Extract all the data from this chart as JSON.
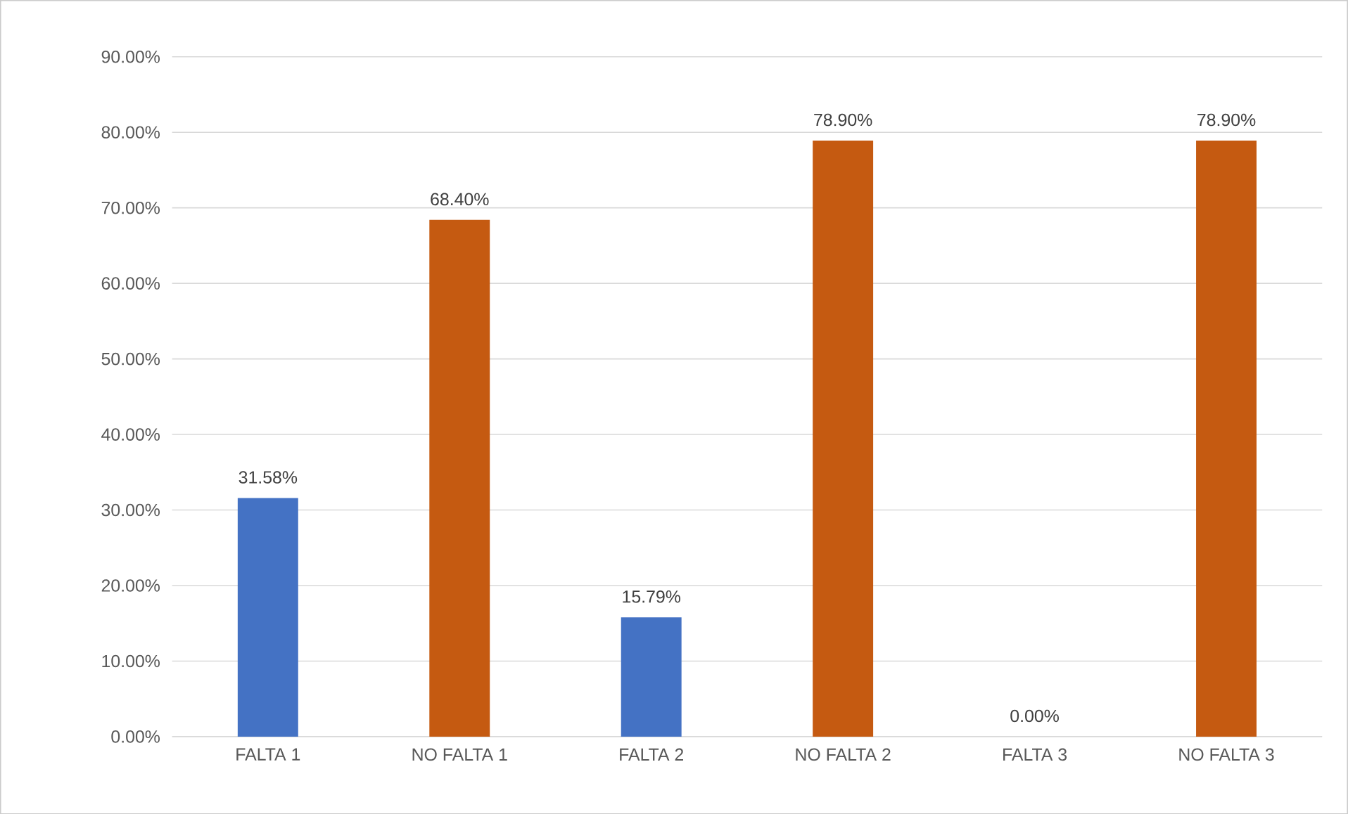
{
  "chart_data": {
    "type": "bar",
    "categories": [
      "FALTA 1",
      "NO FALTA 1",
      "FALTA 2",
      "NO FALTA 2",
      "FALTA 3",
      "NO FALTA 3"
    ],
    "values": [
      31.58,
      68.4,
      15.79,
      78.9,
      0.0,
      78.9
    ],
    "colors": [
      "#4472c4",
      "#c55a11",
      "#4472c4",
      "#c55a11",
      "#4472c4",
      "#c55a11"
    ],
    "value_labels": [
      "31.58%",
      "68.40%",
      "15.79%",
      "78.90%",
      "0.00%",
      "78.90%"
    ],
    "ylim": [
      0,
      90
    ],
    "yticks": [
      {
        "value": 0,
        "label": "0.00%"
      },
      {
        "value": 10,
        "label": "10.00%"
      },
      {
        "value": 20,
        "label": "20.00%"
      },
      {
        "value": 30,
        "label": "30.00%"
      },
      {
        "value": 40,
        "label": "40.00%"
      },
      {
        "value": 50,
        "label": "50.00%"
      },
      {
        "value": 60,
        "label": "60.00%"
      },
      {
        "value": 70,
        "label": "70.00%"
      },
      {
        "value": 80,
        "label": "80.00%"
      },
      {
        "value": 90,
        "label": "90.00%"
      }
    ],
    "grid": "y"
  }
}
